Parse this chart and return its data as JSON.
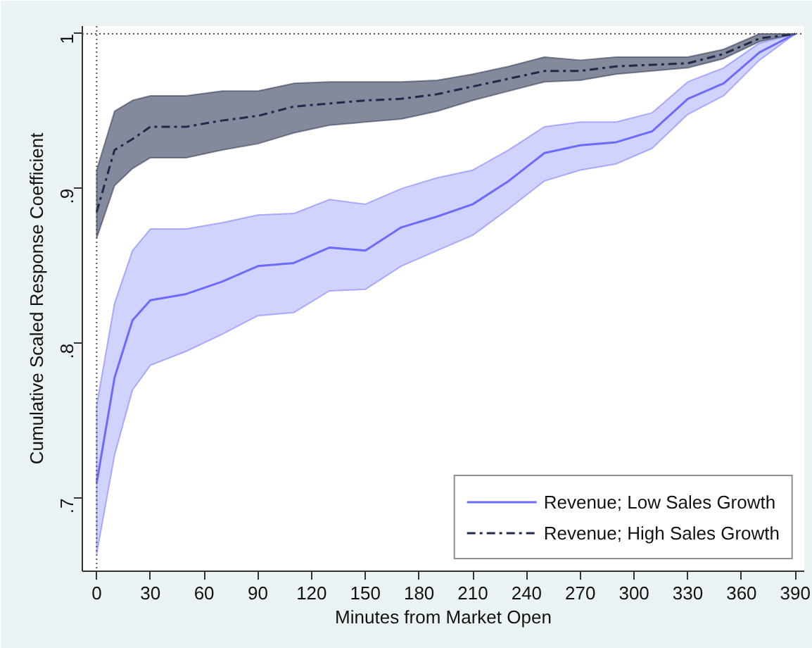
{
  "chart_data": {
    "type": "line",
    "xlabel": "Minutes from Market Open",
    "ylabel": "Cumulative Scaled Response Coefficient",
    "x": [
      0,
      10,
      20,
      30,
      50,
      70,
      90,
      110,
      130,
      150,
      170,
      190,
      210,
      230,
      250,
      270,
      290,
      310,
      330,
      350,
      370,
      390
    ],
    "series": [
      {
        "name": "Revenue; Low Sales Growth",
        "color": "#6b6bff",
        "line_style": "solid",
        "values": [
          0.71,
          0.778,
          0.815,
          0.828,
          0.832,
          0.84,
          0.85,
          0.852,
          0.862,
          0.86,
          0.875,
          0.882,
          0.89,
          0.905,
          0.923,
          0.928,
          0.93,
          0.937,
          0.958,
          0.968,
          0.988,
          1.0
        ],
        "upper": [
          0.76,
          0.826,
          0.86,
          0.874,
          0.874,
          0.878,
          0.883,
          0.884,
          0.893,
          0.89,
          0.9,
          0.907,
          0.912,
          0.925,
          0.94,
          0.943,
          0.943,
          0.949,
          0.969,
          0.978,
          0.994,
          1.0
        ],
        "lower": [
          0.664,
          0.728,
          0.77,
          0.786,
          0.795,
          0.806,
          0.818,
          0.82,
          0.834,
          0.835,
          0.85,
          0.86,
          0.87,
          0.887,
          0.905,
          0.912,
          0.916,
          0.926,
          0.948,
          0.96,
          0.983,
          1.0
        ]
      },
      {
        "name": "Revenue; High Sales Growth",
        "color": "#1f2a4a",
        "line_style": "dashed",
        "values": [
          0.885,
          0.925,
          0.932,
          0.94,
          0.94,
          0.944,
          0.947,
          0.953,
          0.955,
          0.957,
          0.958,
          0.961,
          0.966,
          0.971,
          0.976,
          0.976,
          0.979,
          0.98,
          0.981,
          0.987,
          0.997,
          1.0
        ],
        "upper": [
          0.912,
          0.95,
          0.957,
          0.96,
          0.96,
          0.963,
          0.963,
          0.968,
          0.969,
          0.969,
          0.969,
          0.97,
          0.974,
          0.979,
          0.985,
          0.983,
          0.985,
          0.985,
          0.985,
          0.99,
          1.0,
          1.0
        ],
        "lower": [
          0.868,
          0.902,
          0.913,
          0.92,
          0.92,
          0.925,
          0.929,
          0.936,
          0.941,
          0.943,
          0.945,
          0.95,
          0.957,
          0.963,
          0.969,
          0.97,
          0.974,
          0.976,
          0.978,
          0.984,
          0.995,
          1.0
        ]
      }
    ],
    "xlim": [
      -8,
      395
    ],
    "xticks": [
      0,
      30,
      60,
      90,
      120,
      150,
      180,
      210,
      240,
      270,
      300,
      330,
      360,
      390
    ],
    "ylim": [
      0.653,
      1.005
    ],
    "yticks": [
      {
        "value": 0.7,
        "label": ".7"
      },
      {
        "value": 0.8,
        "label": ".8"
      },
      {
        "value": 0.9,
        "label": ".9"
      },
      1
    ],
    "ref_lines": [
      {
        "axis": "y",
        "value": 1,
        "line_style": "dotted",
        "color": "#555555"
      },
      {
        "axis": "x",
        "value": 0,
        "line_style": "dotted",
        "color": "#555555"
      }
    ],
    "grid": false,
    "legend": "bottom right",
    "marker": "none"
  }
}
